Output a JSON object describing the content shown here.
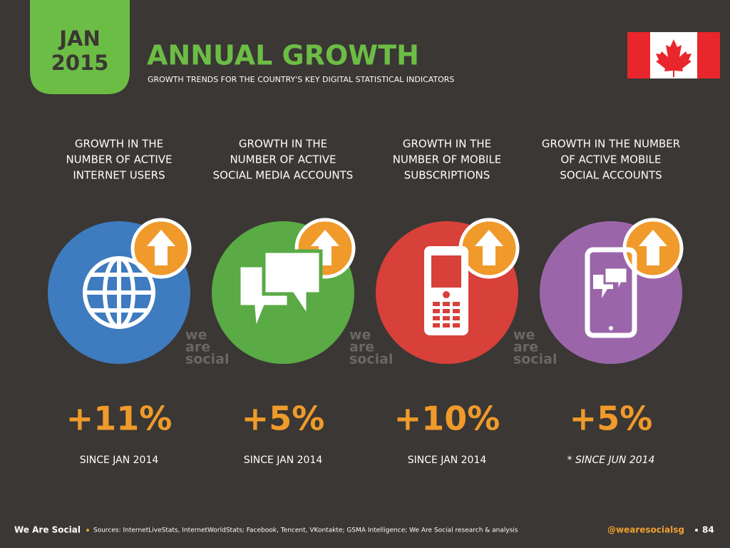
{
  "header": {
    "date_month": "JAN",
    "date_year": "2015",
    "title": "ANNUAL GROWTH",
    "subtitle": "GROWTH TRENDS FOR THE COUNTRY'S KEY DIGITAL STATISTICAL INDICATORS"
  },
  "panels": [
    {
      "label": [
        "GROWTH IN THE",
        "NUMBER OF ACTIVE",
        "INTERNET USERS"
      ],
      "growth": "+11%",
      "since": "SINCE JAN 2014",
      "color": "#3e7bbf"
    },
    {
      "label": [
        "GROWTH IN THE",
        "NUMBER OF ACTIVE",
        "SOCIAL MEDIA ACCOUNTS"
      ],
      "growth": "+5%",
      "since": "SINCE JAN 2014",
      "color": "#5aaa45"
    },
    {
      "label": [
        "GROWTH IN THE",
        "NUMBER OF MOBILE",
        "SUBSCRIPTIONS"
      ],
      "growth": "+10%",
      "since": "SINCE JAN 2014",
      "color": "#d8403a"
    },
    {
      "label": [
        "GROWTH IN THE NUMBER",
        "OF ACTIVE MOBILE",
        "SOCIAL ACCOUNTS"
      ],
      "growth": "+5%",
      "since": "* SINCE JUN 2014",
      "color": "#9a66a9"
    }
  ],
  "watermark": [
    "we",
    "are",
    "social"
  ],
  "footer": {
    "brand": "We Are Social",
    "sources": "Sources: InternetLiveStats, InternetWorldStats; Facebook, Tencent, VKontakte; GSMA Intelligence; We Are Social research & analysis",
    "handle": "@wearesocialsg",
    "page": "84"
  }
}
